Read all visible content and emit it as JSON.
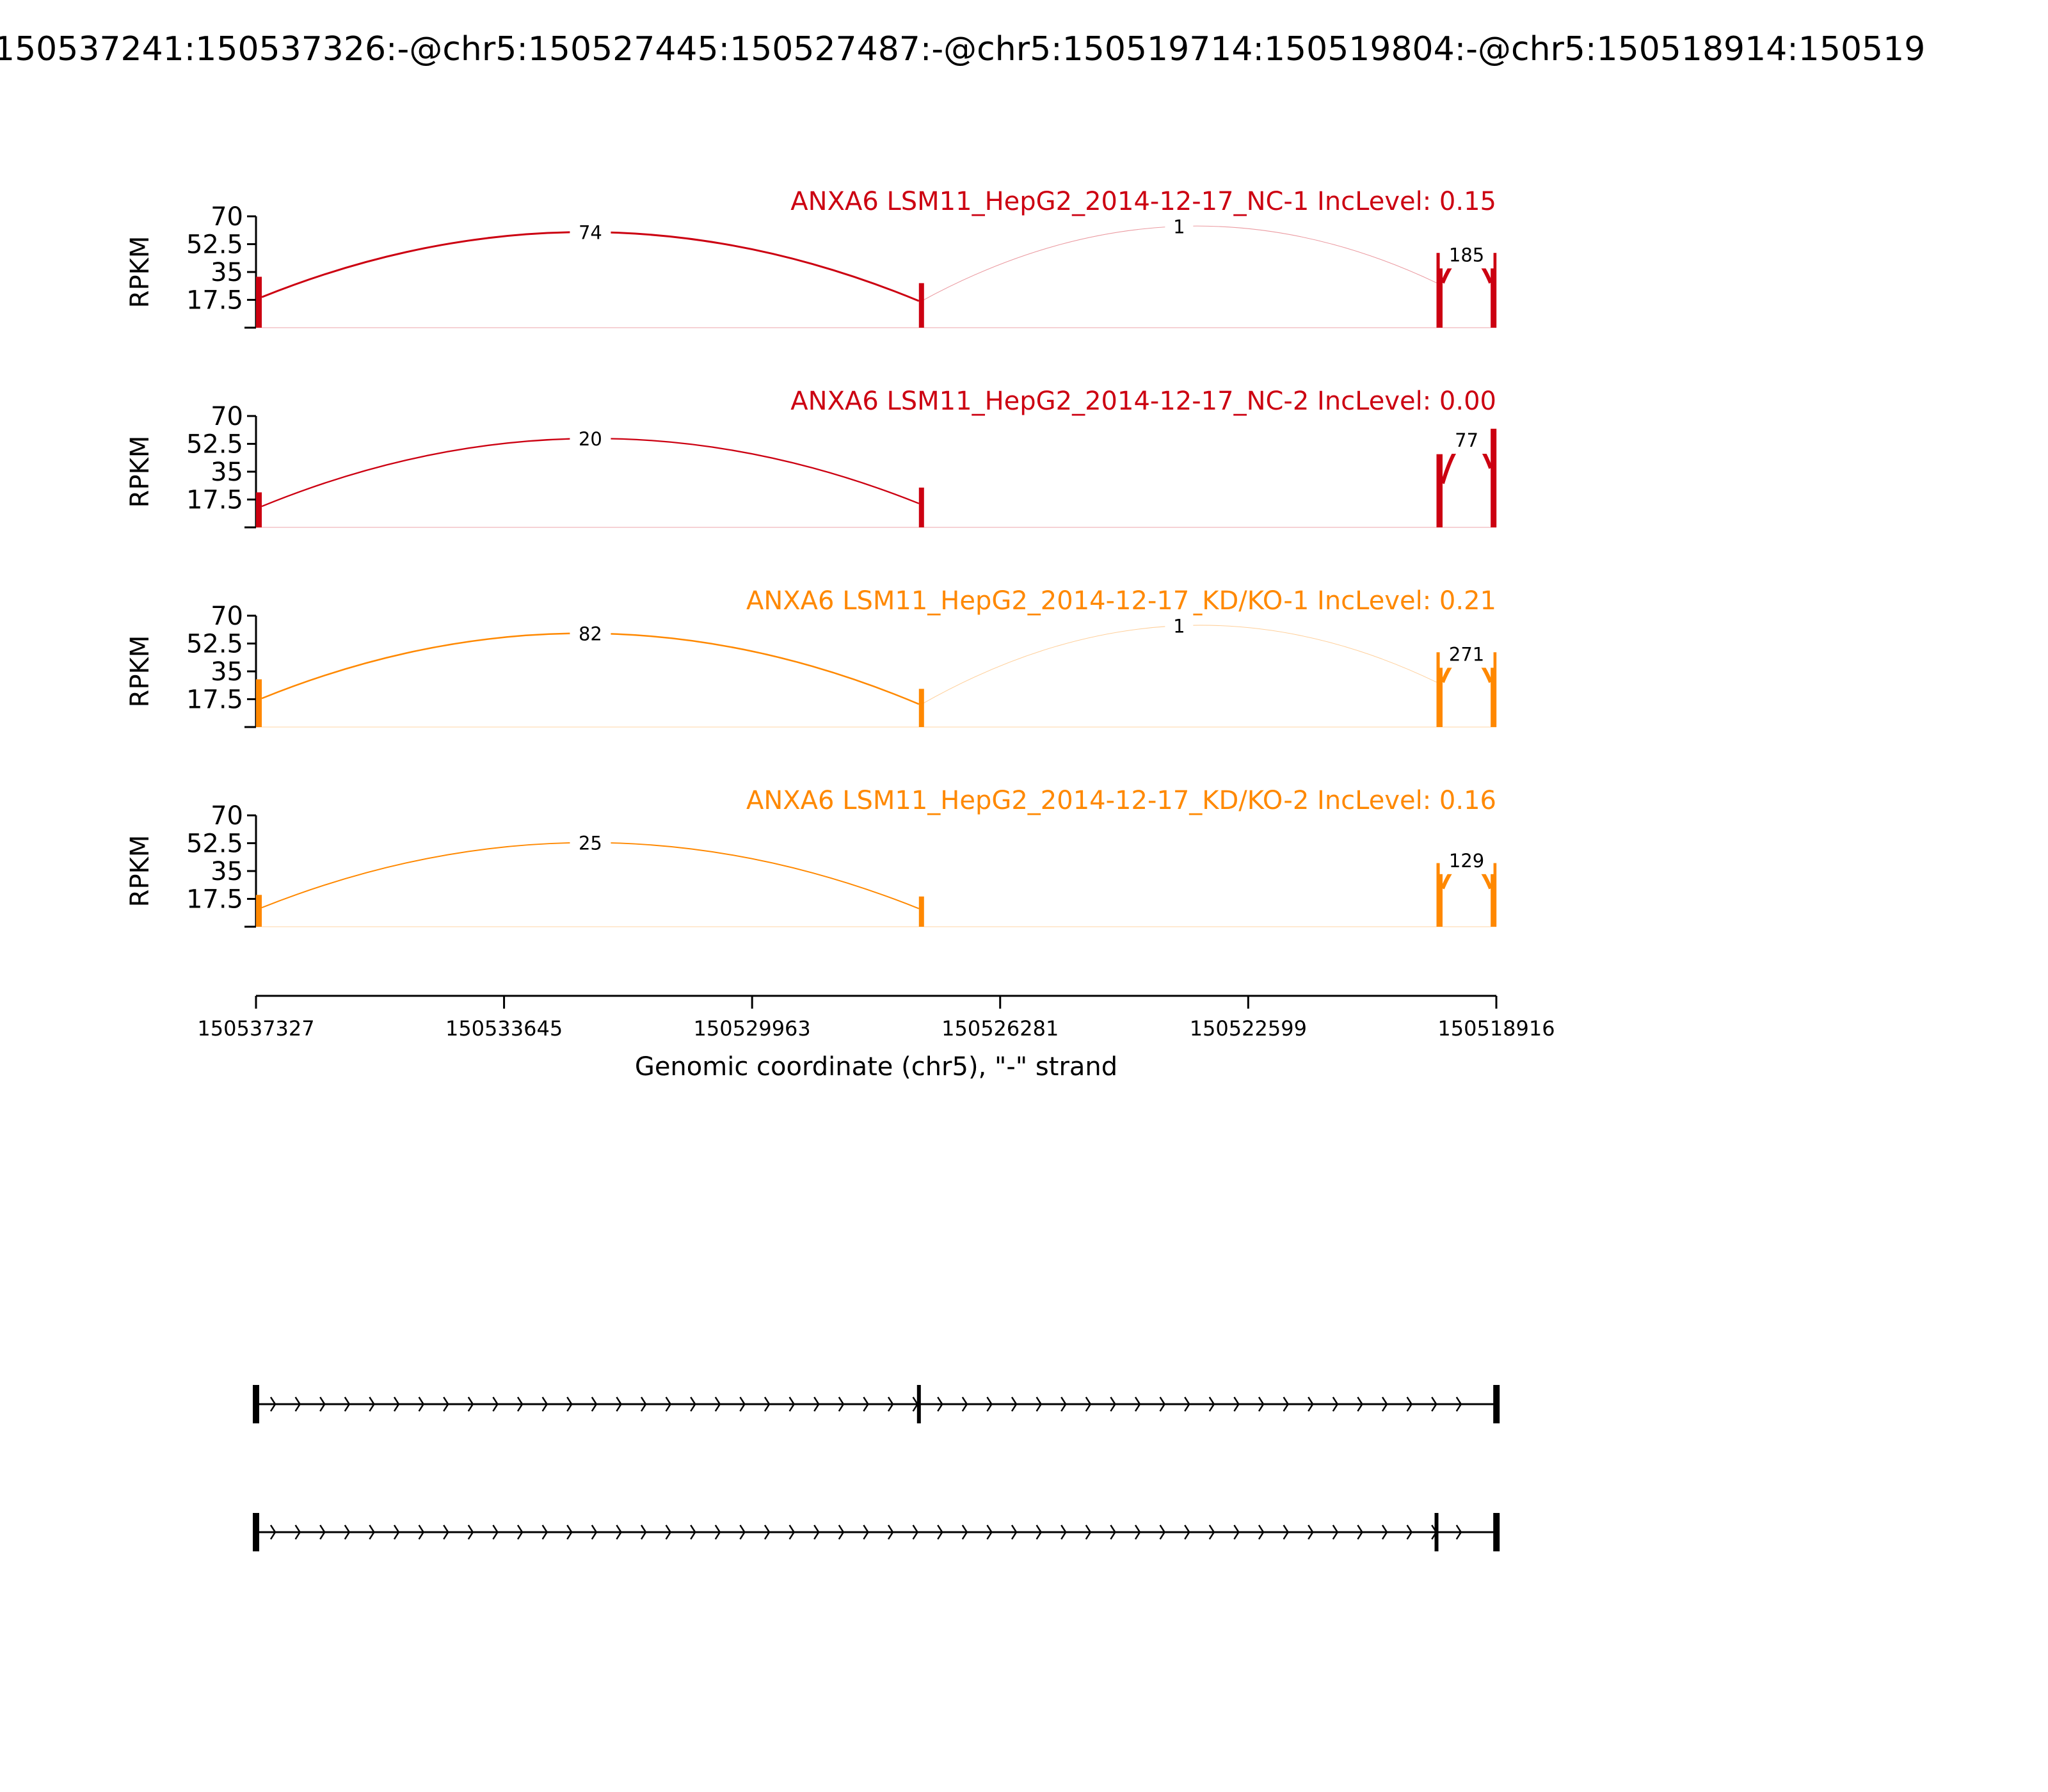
{
  "figure_title": "150537241:150537326:-@chr5:150527445:150527487:-@chr5:150519714:150519804:-@chr5:150518914:150519",
  "colors": {
    "nc": "#cc0011",
    "kd": "#ff8800",
    "axis": "#000000"
  },
  "chart_data": {
    "type": "sashimi",
    "ylabel": "RPKM",
    "xlabel": "Genomic coordinate (chr5), \"-\" strand",
    "ylim": [
      0,
      70
    ],
    "yticks": [
      "17.5",
      "35",
      "52.5",
      "70"
    ],
    "xlim": [
      150537327,
      150518916
    ],
    "xticks": [
      "150537327",
      "150533645",
      "150529963",
      "150526281",
      "150522599",
      "150518916"
    ],
    "exons": [
      {
        "start": 150537327,
        "end": 150537241
      },
      {
        "start": 150527487,
        "end": 150527445
      },
      {
        "start": 150519804,
        "end": 150519714
      },
      {
        "start": 150519000,
        "end": 150518914
      }
    ],
    "panels": [
      {
        "title": "ANXA6 LSM11_HepG2_2014-12-17_NC-1 IncLevel: 0.15",
        "color_key": "nc",
        "coverage": [
          {
            "start": 150537327,
            "end": 150537241,
            "rpkm": 32
          },
          {
            "start": 150527487,
            "end": 150527445,
            "rpkm": 28
          },
          {
            "start": 150519804,
            "end": 150519714,
            "rpkm": 47
          },
          {
            "start": 150519000,
            "end": 150518914,
            "rpkm": 47
          }
        ],
        "junctions": [
          {
            "from": 150537241,
            "to": 150527487,
            "label": "74",
            "count": 74
          },
          {
            "from": 150527445,
            "to": 150519804,
            "label": "1",
            "count": 1
          },
          {
            "from": 150519714,
            "to": 150519000,
            "label": "185",
            "count": 185
          }
        ]
      },
      {
        "title": "ANXA6 LSM11_HepG2_2014-12-17_NC-2 IncLevel: 0.00",
        "color_key": "nc",
        "coverage": [
          {
            "start": 150537327,
            "end": 150537241,
            "rpkm": 22
          },
          {
            "start": 150527487,
            "end": 150527445,
            "rpkm": 25
          },
          {
            "start": 150519804,
            "end": 150519714,
            "rpkm": 46
          },
          {
            "start": 150519000,
            "end": 150518914,
            "rpkm": 62
          }
        ],
        "junctions": [
          {
            "from": 150537241,
            "to": 150527487,
            "label": "20",
            "count": 20
          },
          {
            "from": 150519714,
            "to": 150519000,
            "label": "77",
            "count": 77
          }
        ]
      },
      {
        "title": "ANXA6 LSM11_HepG2_2014-12-17_KD/KO-1 IncLevel: 0.21",
        "color_key": "kd",
        "coverage": [
          {
            "start": 150537327,
            "end": 150537241,
            "rpkm": 30
          },
          {
            "start": 150527487,
            "end": 150527445,
            "rpkm": 24
          },
          {
            "start": 150519804,
            "end": 150519714,
            "rpkm": 47
          },
          {
            "start": 150519000,
            "end": 150518914,
            "rpkm": 47
          }
        ],
        "junctions": [
          {
            "from": 150537241,
            "to": 150527487,
            "label": "82",
            "count": 82
          },
          {
            "from": 150527445,
            "to": 150519804,
            "label": "1",
            "count": 1
          },
          {
            "from": 150519714,
            "to": 150519000,
            "label": "271",
            "count": 271
          }
        ]
      },
      {
        "title": "ANXA6 LSM11_HepG2_2014-12-17_KD/KO-2 IncLevel: 0.16",
        "color_key": "kd",
        "coverage": [
          {
            "start": 150537327,
            "end": 150537241,
            "rpkm": 20
          },
          {
            "start": 150527487,
            "end": 150527445,
            "rpkm": 19
          },
          {
            "start": 150519804,
            "end": 150519714,
            "rpkm": 40
          },
          {
            "start": 150519000,
            "end": 150518914,
            "rpkm": 40
          }
        ],
        "junctions": [
          {
            "from": 150537241,
            "to": 150527487,
            "label": "25",
            "count": 25
          },
          {
            "from": 150519714,
            "to": 150519000,
            "label": "129",
            "count": 129
          }
        ]
      }
    ],
    "isoforms": [
      {
        "exons": [
          150537327,
          150527487,
          150518914
        ]
      },
      {
        "exons": [
          150537327,
          150519804,
          150518914
        ]
      }
    ]
  }
}
